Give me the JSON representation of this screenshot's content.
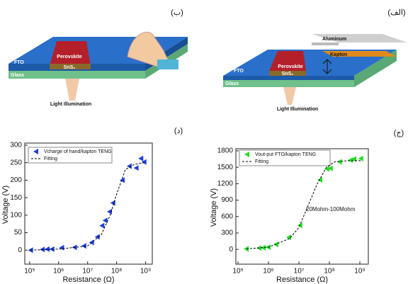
{
  "diagrams": [
    {
      "label": "(ب)",
      "fto": "FTO",
      "glass": "Glass",
      "perovskite": "Perovskite",
      "sns2": "SnS₂",
      "light": "Light Illumination"
    },
    {
      "label": "(الف)",
      "fto": "FTO",
      "glass": "Glass",
      "perovskite": "Perovskite",
      "sns2": "SnS₂",
      "light": "Light Illumination",
      "aluminum": "Aluminum",
      "kapton": "Kapton"
    }
  ],
  "chart_data": [
    {
      "type": "scatter",
      "panel_label": "(د)",
      "x_label": "Resistance (Ω)",
      "y_label": "Voltage (V)",
      "log_x": true,
      "xlim": [
        68000,
        1700000000
      ],
      "xticks": [
        {
          "value": 100000,
          "label": "10⁵"
        },
        {
          "value": 1000000,
          "label": "10⁶"
        },
        {
          "value": 10000000,
          "label": "10⁷"
        },
        {
          "value": 100000000,
          "label": "10⁸"
        },
        {
          "value": 1000000000,
          "label": "10⁹"
        }
      ],
      "ylim": [
        -40,
        300
      ],
      "yticks": [
        0,
        50,
        100,
        150,
        200,
        250,
        300
      ],
      "series": [
        {
          "name": "Vcharge of hand/kapton TENG",
          "color": "#1f3fd8",
          "style": "marker",
          "x": [
            110000,
            280000,
            410000,
            600000,
            1300000,
            3600000,
            7600000,
            14000000,
            22000000,
            32000000,
            41000000,
            58000000,
            76000000,
            160000000,
            280000000,
            480000000,
            700000000,
            900000000
          ],
          "values": [
            0,
            2,
            3,
            3,
            7,
            8,
            12,
            22,
            38,
            70,
            85,
            110,
            135,
            200,
            240,
            235,
            262,
            252
          ]
        },
        {
          "name": "Fitting",
          "color": "#000000",
          "style": "dash",
          "x": [
            110000,
            1000000,
            10000000,
            30000000,
            60000000,
            100000000,
            200000000,
            400000000,
            900000000
          ],
          "values": [
            0,
            3,
            12,
            45,
            100,
            160,
            230,
            245,
            250
          ]
        }
      ]
    },
    {
      "type": "scatter",
      "panel_label": "(ج)",
      "x_label": "Resistance (Ω)",
      "y_label": "Voltage (V)",
      "log_x": true,
      "annotation": "20Mohm-100Mohm",
      "xlim": [
        85000,
        1900000000
      ],
      "xticks": [
        {
          "value": 100000,
          "label": "10⁵"
        },
        {
          "value": 1000000,
          "label": "10⁶"
        },
        {
          "value": 10000000,
          "label": "10⁷"
        },
        {
          "value": 100000000,
          "label": "10⁸"
        },
        {
          "value": 1000000000,
          "label": "10⁹"
        }
      ],
      "ylim": [
        -270,
        1800
      ],
      "yticks": [
        0,
        300,
        600,
        900,
        1200,
        1500,
        1800
      ],
      "series": [
        {
          "name": "Vout-put FTO/kapton TENG",
          "color": "#22dd22",
          "style": "marker",
          "x": [
            190000,
            500000,
            690000,
            1000000,
            1800000,
            4700000,
            11000000,
            50000000,
            85000000,
            110000000,
            220000000,
            500000000,
            650000000,
            1100000000
          ],
          "values": [
            10,
            25,
            30,
            40,
            90,
            220,
            440,
            1270,
            1470,
            1480,
            1600,
            1630,
            1650,
            1660
          ]
        },
        {
          "name": "Fitting",
          "color": "#000000",
          "style": "dash",
          "x": [
            190000,
            1000000,
            5000000,
            10000000,
            20000000,
            40000000,
            80000000,
            150000000,
            400000000,
            1100000000
          ],
          "values": [
            10,
            40,
            200,
            400,
            800,
            1200,
            1500,
            1600,
            1620,
            1620
          ]
        }
      ]
    }
  ]
}
